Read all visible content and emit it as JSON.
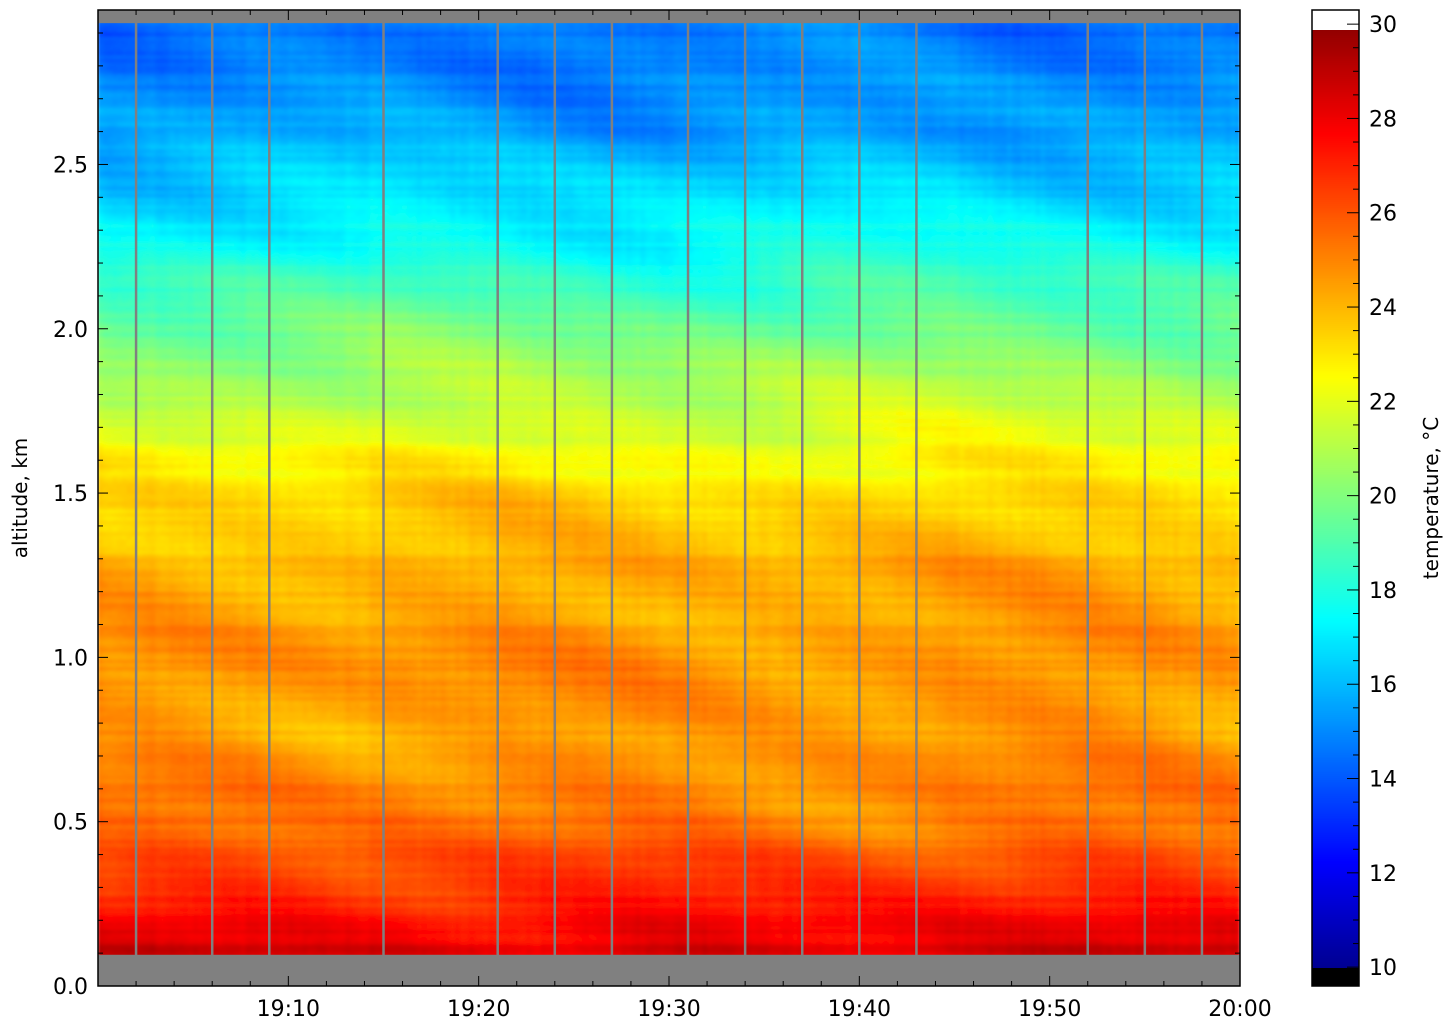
{
  "chart_data": {
    "type": "heatmap",
    "title": "",
    "xlabel": "",
    "ylabel": "altitude, km",
    "colorbar_label": "temperature, °C",
    "colormap": "jet",
    "x_ticks": [
      "19:10",
      "19:20",
      "19:30",
      "19:40",
      "19:50",
      "20:00"
    ],
    "xlim": [
      "19:00",
      "20:00"
    ],
    "y_ticks": [
      "0.0",
      "0.5",
      "1.0",
      "1.5",
      "2.0",
      "2.5"
    ],
    "ylim": [
      0.0,
      2.97
    ],
    "colorbar_ticks": [
      "10",
      "12",
      "14",
      "16",
      "18",
      "20",
      "22",
      "24",
      "26",
      "28",
      "30"
    ],
    "clim": [
      9.6,
      30.3
    ],
    "missing_color": "#808080",
    "missing_altitude_ranges_km": [
      [
        0.0,
        0.095
      ],
      [
        2.93,
        2.97
      ]
    ],
    "gap_times": [
      "19:02",
      "19:06",
      "19:09",
      "19:15",
      "19:21",
      "19:24",
      "19:27",
      "19:31",
      "19:34",
      "19:37",
      "19:40",
      "19:43",
      "19:52",
      "19:55",
      "19:58"
    ],
    "temperature_profile": {
      "altitude_km": [
        0.1,
        0.2,
        0.35,
        0.5,
        0.8,
        1.0,
        1.3,
        1.5,
        1.7,
        2.0,
        2.3,
        2.6,
        2.9
      ],
      "temperature_c": [
        28.5,
        27.6,
        26.3,
        25.3,
        24.5,
        24.8,
        24.1,
        23.3,
        21.8,
        19.6,
        17.4,
        15.5,
        14.5
      ]
    }
  }
}
